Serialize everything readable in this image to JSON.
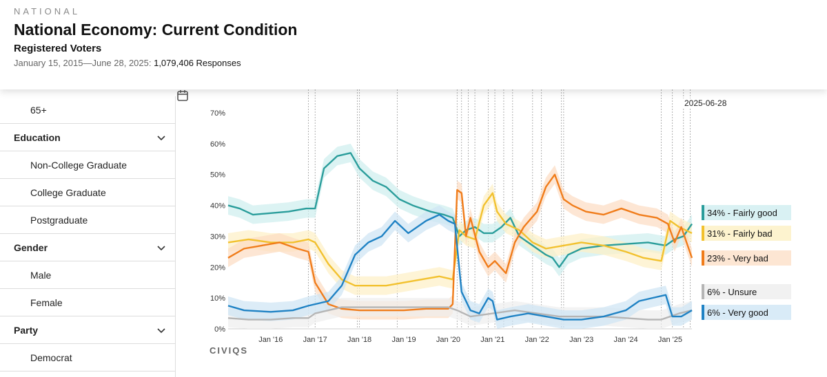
{
  "header": {
    "kicker": "NATIONAL",
    "title": "National Economy: Current Condition",
    "subtitle": "Registered Voters",
    "date_range": "January 15, 2015—June 28, 2025: ",
    "responses": "1,079,406 Responses"
  },
  "sidebar": {
    "items": [
      {
        "label": "65+",
        "type": "sub"
      },
      {
        "label": "Education",
        "type": "group"
      },
      {
        "label": "Non-College Graduate",
        "type": "sub"
      },
      {
        "label": "College Graduate",
        "type": "sub"
      },
      {
        "label": "Postgraduate",
        "type": "sub"
      },
      {
        "label": "Gender",
        "type": "group"
      },
      {
        "label": "Male",
        "type": "sub"
      },
      {
        "label": "Female",
        "type": "sub"
      },
      {
        "label": "Party",
        "type": "group"
      },
      {
        "label": "Democrat",
        "type": "sub"
      }
    ]
  },
  "brand": "CIVIQS",
  "date_flag": "2025-06-28",
  "chart_data": {
    "type": "line",
    "y_ticks": [
      "0%",
      "10%",
      "20%",
      "30%",
      "40%",
      "50%",
      "60%",
      "70%"
    ],
    "ylim": [
      0,
      70
    ],
    "x_ticks": [
      "Jan '16",
      "Jan '17",
      "Jan '18",
      "Jan '19",
      "Jan '20",
      "Jan '21",
      "Jan '22",
      "Jan '23",
      "Jan '24",
      "Jan '25"
    ],
    "xlim": [
      2015.04,
      2025.49
    ],
    "legend_position": "right",
    "event_lines": [
      2016.85,
      2017.0,
      2017.95,
      2018.0,
      2018.85,
      2020.2,
      2020.3,
      2020.45,
      2020.6,
      2020.9,
      2021.05,
      2021.25,
      2021.45,
      2021.9,
      2022.1,
      2022.55,
      2022.6,
      2024.8,
      2025.05,
      2025.3,
      2025.45
    ],
    "series": [
      {
        "name": "34% - Fairly good",
        "color": "#2a9d9b",
        "band": "#cdeeee",
        "points": [
          [
            2015.04,
            40
          ],
          [
            2015.3,
            39
          ],
          [
            2015.6,
            37
          ],
          [
            2016.0,
            37.5
          ],
          [
            2016.4,
            38
          ],
          [
            2016.8,
            39
          ],
          [
            2017.0,
            39
          ],
          [
            2017.2,
            52
          ],
          [
            2017.5,
            56
          ],
          [
            2017.8,
            57
          ],
          [
            2018.0,
            52
          ],
          [
            2018.3,
            48
          ],
          [
            2018.6,
            46
          ],
          [
            2018.9,
            42
          ],
          [
            2019.2,
            40
          ],
          [
            2019.6,
            38
          ],
          [
            2019.9,
            37
          ],
          [
            2020.1,
            36
          ],
          [
            2020.25,
            30
          ],
          [
            2020.4,
            32
          ],
          [
            2020.6,
            33
          ],
          [
            2020.8,
            31
          ],
          [
            2021.0,
            31
          ],
          [
            2021.2,
            33
          ],
          [
            2021.4,
            36
          ],
          [
            2021.6,
            30
          ],
          [
            2021.8,
            28
          ],
          [
            2022.0,
            26
          ],
          [
            2022.2,
            24
          ],
          [
            2022.35,
            23
          ],
          [
            2022.5,
            20
          ],
          [
            2022.7,
            24
          ],
          [
            2023.0,
            26
          ],
          [
            2023.5,
            27
          ],
          [
            2024.0,
            27.5
          ],
          [
            2024.5,
            28
          ],
          [
            2024.9,
            27
          ],
          [
            2025.1,
            29
          ],
          [
            2025.3,
            30
          ],
          [
            2025.49,
            34
          ]
        ]
      },
      {
        "name": "31% - Fairly bad",
        "color": "#f2c12e",
        "band": "#fdf0c4",
        "points": [
          [
            2015.04,
            28
          ],
          [
            2015.5,
            29
          ],
          [
            2016.0,
            28
          ],
          [
            2016.5,
            28
          ],
          [
            2016.85,
            29
          ],
          [
            2017.0,
            28
          ],
          [
            2017.3,
            21
          ],
          [
            2017.6,
            16
          ],
          [
            2017.9,
            14
          ],
          [
            2018.2,
            14
          ],
          [
            2018.6,
            14
          ],
          [
            2019.0,
            15
          ],
          [
            2019.4,
            16
          ],
          [
            2019.8,
            17
          ],
          [
            2020.1,
            16
          ],
          [
            2020.25,
            32
          ],
          [
            2020.4,
            30
          ],
          [
            2020.6,
            29
          ],
          [
            2020.8,
            40
          ],
          [
            2021.0,
            44
          ],
          [
            2021.1,
            38
          ],
          [
            2021.3,
            34
          ],
          [
            2021.6,
            32
          ],
          [
            2021.9,
            28
          ],
          [
            2022.2,
            26
          ],
          [
            2022.6,
            27
          ],
          [
            2023.0,
            28
          ],
          [
            2023.5,
            27
          ],
          [
            2024.0,
            25
          ],
          [
            2024.4,
            23
          ],
          [
            2024.8,
            22
          ],
          [
            2025.0,
            35
          ],
          [
            2025.2,
            33
          ],
          [
            2025.49,
            31
          ]
        ]
      },
      {
        "name": "23% - Very bad",
        "color": "#f07c1a",
        "band": "#fcdcc2",
        "points": [
          [
            2015.04,
            23
          ],
          [
            2015.4,
            26
          ],
          [
            2015.8,
            27
          ],
          [
            2016.2,
            28
          ],
          [
            2016.6,
            26
          ],
          [
            2016.85,
            25
          ],
          [
            2017.0,
            15
          ],
          [
            2017.3,
            8
          ],
          [
            2017.6,
            6.5
          ],
          [
            2018.0,
            6
          ],
          [
            2018.5,
            6
          ],
          [
            2019.0,
            6
          ],
          [
            2019.5,
            6.5
          ],
          [
            2020.0,
            6.5
          ],
          [
            2020.1,
            8
          ],
          [
            2020.2,
            45
          ],
          [
            2020.3,
            44
          ],
          [
            2020.4,
            30
          ],
          [
            2020.5,
            36
          ],
          [
            2020.7,
            25
          ],
          [
            2020.9,
            20
          ],
          [
            2021.05,
            22
          ],
          [
            2021.3,
            18
          ],
          [
            2021.5,
            28
          ],
          [
            2021.7,
            33
          ],
          [
            2022.0,
            38
          ],
          [
            2022.2,
            46
          ],
          [
            2022.4,
            50
          ],
          [
            2022.6,
            42
          ],
          [
            2022.8,
            40
          ],
          [
            2023.1,
            38
          ],
          [
            2023.5,
            37
          ],
          [
            2023.9,
            39
          ],
          [
            2024.3,
            37
          ],
          [
            2024.7,
            36
          ],
          [
            2024.95,
            34
          ],
          [
            2025.1,
            28
          ],
          [
            2025.25,
            33
          ],
          [
            2025.49,
            23
          ]
        ]
      },
      {
        "name": "6% - Unsure",
        "color": "#b5b5b5",
        "band": "#eeeeee",
        "points": [
          [
            2015.04,
            3.5
          ],
          [
            2015.5,
            3
          ],
          [
            2016.0,
            3
          ],
          [
            2016.5,
            3.5
          ],
          [
            2016.85,
            3.5
          ],
          [
            2017.0,
            5
          ],
          [
            2017.3,
            6
          ],
          [
            2017.6,
            7
          ],
          [
            2018.0,
            7
          ],
          [
            2018.5,
            7
          ],
          [
            2019.0,
            7
          ],
          [
            2019.5,
            7
          ],
          [
            2020.0,
            7
          ],
          [
            2020.2,
            6
          ],
          [
            2020.5,
            4
          ],
          [
            2021.0,
            5
          ],
          [
            2021.5,
            6
          ],
          [
            2022.0,
            5
          ],
          [
            2022.5,
            4
          ],
          [
            2023.0,
            4
          ],
          [
            2023.5,
            4
          ],
          [
            2024.0,
            3.5
          ],
          [
            2024.5,
            3
          ],
          [
            2024.8,
            3
          ],
          [
            2025.0,
            4
          ],
          [
            2025.2,
            5
          ],
          [
            2025.49,
            6
          ]
        ]
      },
      {
        "name": "6% - Very good",
        "color": "#1f82c4",
        "band": "#cde4f4",
        "points": [
          [
            2015.04,
            7.5
          ],
          [
            2015.4,
            6
          ],
          [
            2016.0,
            5.5
          ],
          [
            2016.5,
            6
          ],
          [
            2016.85,
            7.5
          ],
          [
            2017.0,
            8
          ],
          [
            2017.3,
            9
          ],
          [
            2017.6,
            14
          ],
          [
            2017.9,
            24
          ],
          [
            2018.2,
            28
          ],
          [
            2018.5,
            30
          ],
          [
            2018.8,
            35
          ],
          [
            2019.1,
            31
          ],
          [
            2019.5,
            35
          ],
          [
            2019.8,
            37
          ],
          [
            2020.0,
            35
          ],
          [
            2020.15,
            34
          ],
          [
            2020.3,
            12
          ],
          [
            2020.5,
            6
          ],
          [
            2020.7,
            5
          ],
          [
            2020.9,
            10
          ],
          [
            2021.0,
            9
          ],
          [
            2021.1,
            3
          ],
          [
            2021.4,
            4
          ],
          [
            2021.8,
            5
          ],
          [
            2022.2,
            4
          ],
          [
            2022.6,
            3
          ],
          [
            2023.0,
            3
          ],
          [
            2023.5,
            4
          ],
          [
            2024.0,
            6
          ],
          [
            2024.3,
            9
          ],
          [
            2024.6,
            10
          ],
          [
            2024.9,
            11
          ],
          [
            2025.05,
            4
          ],
          [
            2025.25,
            4
          ],
          [
            2025.49,
            6
          ]
        ]
      }
    ]
  }
}
